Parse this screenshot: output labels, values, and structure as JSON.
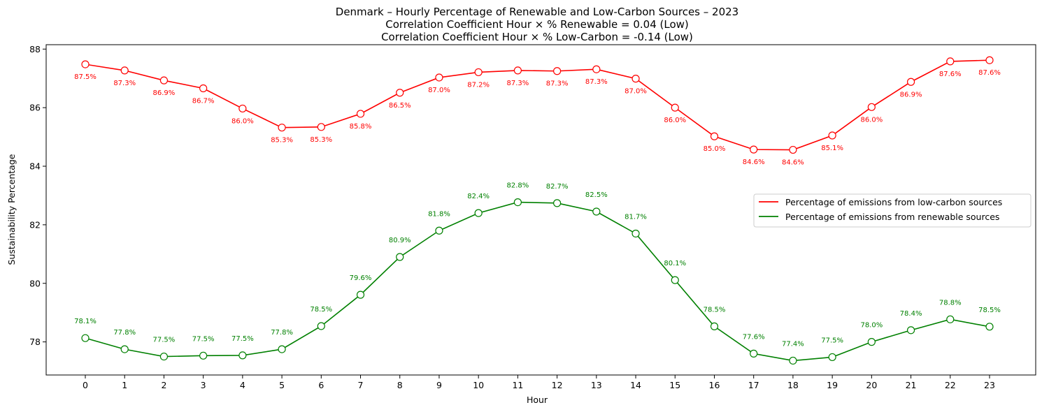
{
  "chart_data": {
    "type": "line",
    "title_lines": [
      "Denmark – Hourly Percentage of Renewable and Low-Carbon Sources – 2023",
      "Correlation Coefficient Hour × % Renewable = 0.04 (Low)",
      "Correlation Coefficient Hour × % Low-Carbon = -0.14 (Low)"
    ],
    "xlabel": "Hour",
    "ylabel": "Sustainability Percentage",
    "x": [
      0,
      1,
      2,
      3,
      4,
      5,
      6,
      7,
      8,
      9,
      10,
      11,
      12,
      13,
      14,
      15,
      16,
      17,
      18,
      19,
      20,
      21,
      22,
      23
    ],
    "ylim": [
      76.87,
      88.15
    ],
    "yticks": [
      78,
      80,
      82,
      84,
      86,
      88
    ],
    "grid": false,
    "legend_position": "center-right",
    "series": [
      {
        "name": "Percentage of emissions from low-carbon sources",
        "color": "#ff0000",
        "values": [
          87.48,
          87.27,
          86.93,
          86.66,
          85.97,
          85.32,
          85.34,
          85.79,
          86.51,
          87.03,
          87.21,
          87.27,
          87.25,
          87.31,
          86.99,
          86.0,
          85.02,
          84.57,
          84.56,
          85.05,
          86.02,
          86.88,
          87.58,
          87.62
        ],
        "labels": [
          "87.5%",
          "87.3%",
          "86.9%",
          "86.7%",
          "86.0%",
          "85.3%",
          "85.3%",
          "85.8%",
          "86.5%",
          "87.0%",
          "87.2%",
          "87.3%",
          "87.3%",
          "87.3%",
          "87.0%",
          "86.0%",
          "85.0%",
          "84.6%",
          "84.6%",
          "85.1%",
          "86.0%",
          "86.9%",
          "87.6%",
          "87.6%"
        ],
        "label_position": "below"
      },
      {
        "name": "Percentage of emissions from renewable sources",
        "color": "#008000",
        "values": [
          78.13,
          77.75,
          77.5,
          77.53,
          77.54,
          77.75,
          78.54,
          79.61,
          80.9,
          81.8,
          82.4,
          82.77,
          82.74,
          82.45,
          81.7,
          80.11,
          78.53,
          77.6,
          77.36,
          77.48,
          78.0,
          78.4,
          78.77,
          78.52
        ],
        "labels": [
          "78.1%",
          "77.8%",
          "77.5%",
          "77.5%",
          "77.5%",
          "77.8%",
          "78.5%",
          "79.6%",
          "80.9%",
          "81.8%",
          "82.4%",
          "82.8%",
          "82.7%",
          "82.5%",
          "81.7%",
          "80.1%",
          "78.5%",
          "77.6%",
          "77.4%",
          "77.5%",
          "78.0%",
          "78.4%",
          "78.8%",
          "78.5%"
        ],
        "label_position": "above"
      }
    ]
  }
}
